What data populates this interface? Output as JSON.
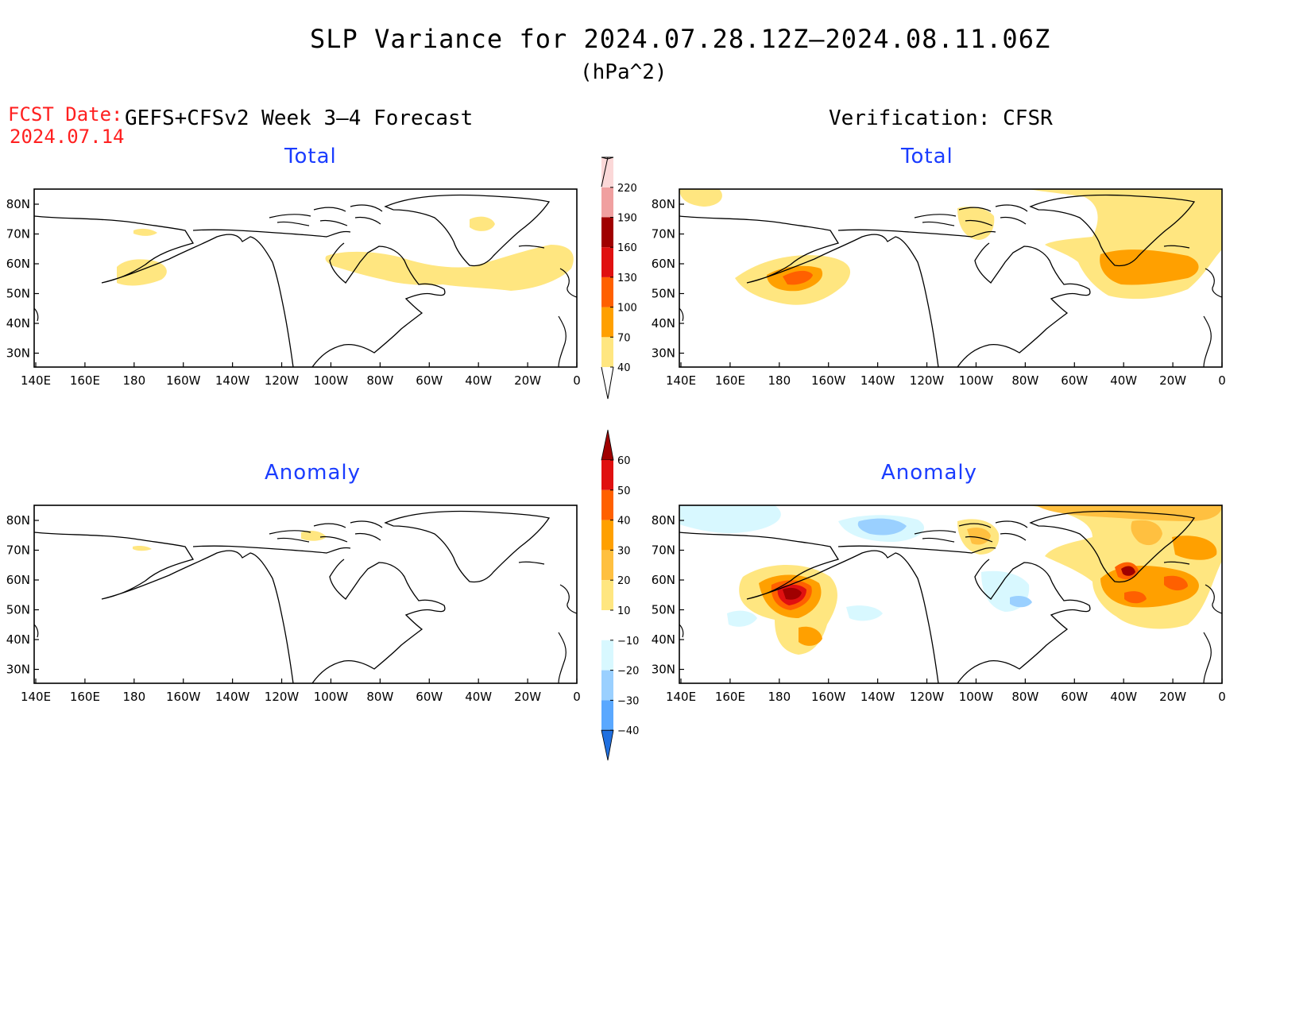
{
  "header": {
    "title": "SLP Variance for 2024.07.28.12Z–2024.08.11.06Z",
    "units": "(hPa^2)",
    "fcst_label": "FCST Date:",
    "fcst_date": "2024.07.14",
    "forecast_label": "GEFS+CFSv2 Week 3–4 Forecast",
    "verification_label": "Verification: CFSR"
  },
  "panels": {
    "total_label": "Total",
    "anomaly_label": "Anomaly"
  },
  "axes": {
    "lon_ticks": [
      "140E",
      "160E",
      "180",
      "160W",
      "140W",
      "120W",
      "100W",
      "80W",
      "60W",
      "40W",
      "20W",
      "0"
    ],
    "lat_ticks": [
      "80N",
      "70N",
      "60N",
      "50N",
      "40N",
      "30N"
    ]
  },
  "colorbars": {
    "total": {
      "levels": [
        "40",
        "70",
        "100",
        "130",
        "160",
        "190",
        "220"
      ],
      "colors": [
        "#ffe680",
        "#ffa000",
        "#ff6000",
        "#e01010",
        "#a00000",
        "#f0a0a0",
        "#fbd8d8"
      ]
    },
    "anomaly": {
      "levels": [
        "60",
        "50",
        "40",
        "30",
        "20",
        "10",
        "−10",
        "−20",
        "−30",
        "−40"
      ],
      "colors": [
        "#a00000",
        "#e01010",
        "#ff6000",
        "#ffa000",
        "#ffc040",
        "#ffe680",
        "#ffffff",
        "#d8f8ff",
        "#9ad0ff",
        "#5aa8ff",
        "#2070e0"
      ]
    }
  }
}
